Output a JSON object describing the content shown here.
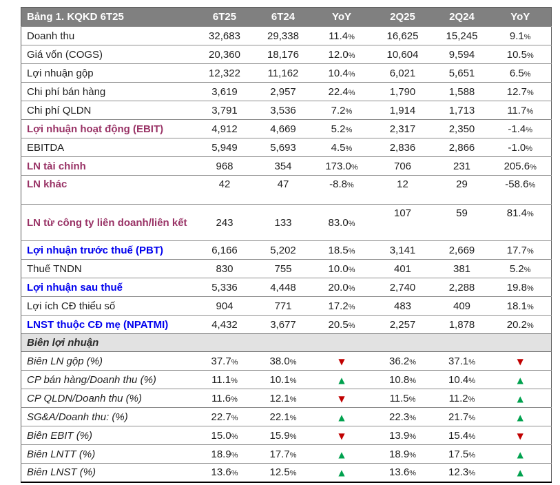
{
  "colors": {
    "header_bg": "#808080",
    "header_text": "#ffffff",
    "plum_accent": "#993366",
    "blue_accent": "#0000ee",
    "section_bg": "#e2e2e2",
    "up_green": "#00A14E",
    "down_red": "#C00000",
    "body_text": "#1f1f1f"
  },
  "icons": {
    "up_triangle": "▲",
    "down_triangle": "▼"
  },
  "table": {
    "title": "Bảng 1. KQKD 6T25",
    "columns": [
      "6T25",
      "6T24",
      "YoY",
      "2Q25",
      "2Q24",
      "YoY"
    ],
    "rows": [
      {
        "label": "Doanh thu",
        "style": "normal",
        "values": [
          "32,683",
          "29,338",
          "11.4%",
          "16,625",
          "15,245",
          "9.1%"
        ]
      },
      {
        "label": "Giá vốn (COGS)",
        "style": "normal",
        "values": [
          "20,360",
          "18,176",
          "12.0%",
          "10,604",
          "9,594",
          "10.5%"
        ]
      },
      {
        "label": "Lợi nhuận gộp",
        "style": "normal",
        "values": [
          "12,322",
          "11,162",
          "10.4%",
          "6,021",
          "5,651",
          "6.5%"
        ]
      },
      {
        "label": "Chi phí bán hàng",
        "style": "normal",
        "values": [
          "3,619",
          "2,957",
          "22.4%",
          "1,790",
          "1,588",
          "12.7%"
        ]
      },
      {
        "label": "Chi phí QLDN",
        "style": "normal",
        "values": [
          "3,791",
          "3,536",
          "7.2%",
          "1,914",
          "1,713",
          "11.7%"
        ]
      },
      {
        "label": "Lợi nhuận hoạt động (EBIT)",
        "style": "plum",
        "values": [
          "4,912",
          "4,669",
          "5.2%",
          "2,317",
          "2,350",
          "-1.4%"
        ]
      },
      {
        "label": "EBITDA",
        "style": "normal",
        "values": [
          "5,949",
          "5,693",
          "4.5%",
          "2,836",
          "2,866",
          "-1.0%"
        ]
      },
      {
        "label": "LN tài chính",
        "style": "plum",
        "values": [
          "968",
          "354",
          "173.0%",
          "706",
          "231",
          "205.6%"
        ]
      },
      {
        "label": "LN khác",
        "style": "plum",
        "size": "tall",
        "values": [
          "42",
          "47",
          "-8.8%",
          "12",
          "29",
          "-58.6%"
        ]
      },
      {
        "label": "LN từ công ty liên doanh/liên kết",
        "style": "plum",
        "size": "wrap",
        "top_cols": [
          3,
          4,
          5
        ],
        "values": [
          "243",
          "133",
          "83.0%",
          "107",
          "59",
          "81.4%"
        ]
      },
      {
        "label": "Lợi nhuận trước thuế (PBT)",
        "style": "blue",
        "values": [
          "6,166",
          "5,202",
          "18.5%",
          "3,141",
          "2,669",
          "17.7%"
        ]
      },
      {
        "label": "Thuế TNDN",
        "style": "normal",
        "values": [
          "830",
          "755",
          "10.0%",
          "401",
          "381",
          "5.2%"
        ]
      },
      {
        "label": "Lợi nhuận sau thuế",
        "style": "blue",
        "values": [
          "5,336",
          "4,448",
          "20.0%",
          "2,740",
          "2,288",
          "19.8%"
        ]
      },
      {
        "label": "Lợi ích CĐ thiểu số",
        "style": "normal",
        "values": [
          "904",
          "771",
          "17.2%",
          "483",
          "409",
          "18.1%"
        ]
      },
      {
        "label": "LNST thuộc CĐ mẹ (NPATMI)",
        "style": "blue",
        "values": [
          "4,432",
          "3,677",
          "20.5%",
          "2,257",
          "1,878",
          "20.2%"
        ]
      }
    ],
    "margin_section": {
      "header": "Biên lợi nhuận",
      "rows": [
        {
          "label": "Biên LN gộp (%)",
          "values": [
            "37.7%",
            "38.0%",
            {
              "tri": "down"
            },
            "36.2%",
            "37.1%",
            {
              "tri": "down"
            }
          ]
        },
        {
          "label": "CP bán hàng/Doanh thu (%)",
          "values": [
            "11.1%",
            "10.1%",
            {
              "tri": "up"
            },
            "10.8%",
            "10.4%",
            {
              "tri": "up"
            }
          ]
        },
        {
          "label": "CP QLDN/Doanh thu (%)",
          "values": [
            "11.6%",
            "12.1%",
            {
              "tri": "down"
            },
            "11.5%",
            "11.2%",
            {
              "tri": "up"
            }
          ]
        },
        {
          "label": "SG&A/Doanh thu: (%)",
          "values": [
            "22.7%",
            "22.1%",
            {
              "tri": "up"
            },
            "22.3%",
            "21.7%",
            {
              "tri": "up"
            }
          ]
        },
        {
          "label": "Biên EBIT (%)",
          "values": [
            "15.0%",
            "15.9%",
            {
              "tri": "down"
            },
            "13.9%",
            "15.4%",
            {
              "tri": "down"
            }
          ]
        },
        {
          "label": "Biên LNTT (%)",
          "values": [
            "18.9%",
            "17.7%",
            {
              "tri": "up"
            },
            "18.9%",
            "17.5%",
            {
              "tri": "up"
            }
          ]
        },
        {
          "label": "Biên LNST (%)",
          "values": [
            "13.6%",
            "12.5%",
            {
              "tri": "up"
            },
            "13.6%",
            "12.3%",
            {
              "tri": "up"
            }
          ]
        }
      ]
    }
  }
}
